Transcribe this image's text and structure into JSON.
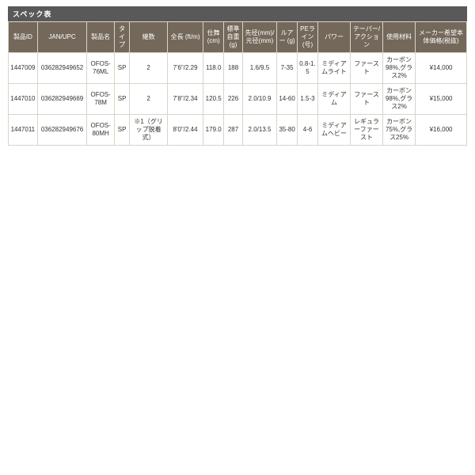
{
  "title": "スペック表",
  "columns": [
    "製品ID",
    "JAN/UPC",
    "製品名",
    "タイプ",
    "継数",
    "全長 (ft/m)",
    "仕舞 (cm)",
    "標準自重 (g)",
    "先径(mm)/元径(mm)",
    "ルアー (g)",
    "PEライン (号)",
    "パワー",
    "テーパー/アクション",
    "使用材料",
    "メーカー希望本体価格(税抜)"
  ],
  "rows": [
    {
      "id": "1447009",
      "jan": "036282949652",
      "name": "OFOS-76ML",
      "type": "SP",
      "pcs": "2",
      "len": "7'6\"/2.29",
      "close": "118.0",
      "wt": "188",
      "dia": "1.6/9.5",
      "lure": "7-35",
      "pe": "0.8-1.5",
      "pow": "ミディアムライト",
      "tap": "ファースト",
      "mat": "カーボン98%,グラス2%",
      "price": "¥14,000"
    },
    {
      "id": "1447010",
      "jan": "036282949669",
      "name": "OFOS-78M",
      "type": "SP",
      "pcs": "2",
      "len": "7'8\"/2.34",
      "close": "120.5",
      "wt": "226",
      "dia": "2.0/10.9",
      "lure": "14-60",
      "pe": "1.5-3",
      "pow": "ミディアム",
      "tap": "ファースト",
      "mat": "カーボン98%,グラス2%",
      "price": "¥15,000"
    },
    {
      "id": "1447011",
      "jan": "036282949676",
      "name": "OFOS-80MH",
      "type": "SP",
      "pcs": "※1（グリップ脱着式）",
      "len": "8'0\"/2.44",
      "close": "179.0",
      "wt": "287",
      "dia": "2.0/13.5",
      "lure": "35-80",
      "pe": "4-6",
      "pow": "ミディアムヘビー",
      "tap": "レギュラーファースト",
      "mat": "カーボン75%,グラス25%",
      "price": "¥16,000"
    }
  ]
}
